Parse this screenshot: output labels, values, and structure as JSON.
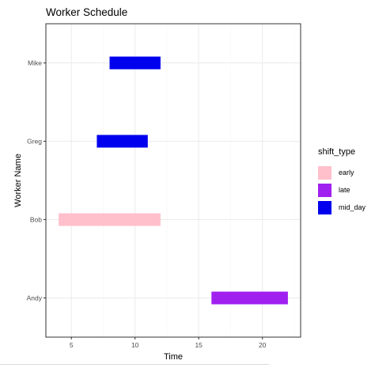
{
  "chart_data": {
    "type": "bar",
    "orientation": "horizontal",
    "title": "Worker Schedule",
    "xlabel": "Time",
    "ylabel": "Worker Name",
    "xlim": [
      3,
      23
    ],
    "x_ticks": [
      5,
      10,
      15,
      20
    ],
    "categories": [
      "Mike",
      "Greg",
      "Bob",
      "Andy"
    ],
    "legend_title": "shift_type",
    "legend_position": "right",
    "grid": true,
    "series": [
      {
        "name": "early",
        "color": "#FFC0CB"
      },
      {
        "name": "late",
        "color": "#A020F0"
      },
      {
        "name": "mid_day",
        "color": "#0000EE"
      }
    ],
    "bars": [
      {
        "worker": "Mike",
        "start": 8,
        "end": 12,
        "shift_type": "mid_day"
      },
      {
        "worker": "Greg",
        "start": 7,
        "end": 11,
        "shift_type": "mid_day"
      },
      {
        "worker": "Bob",
        "start": 4,
        "end": 12,
        "shift_type": "early"
      },
      {
        "worker": "Andy",
        "start": 16,
        "end": 22,
        "shift_type": "late"
      }
    ]
  }
}
